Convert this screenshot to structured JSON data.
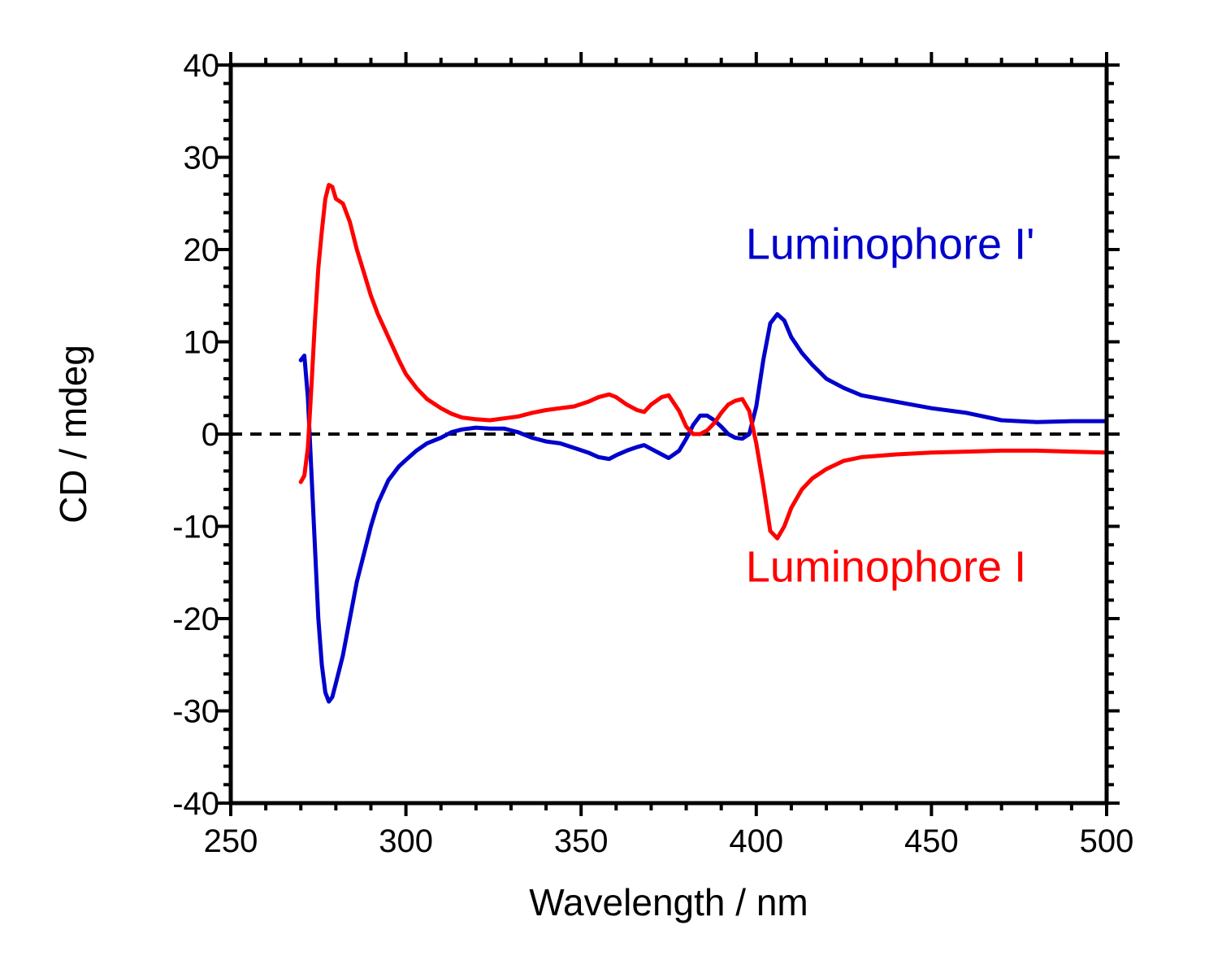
{
  "chart_data": {
    "type": "line",
    "title": "",
    "xlabel": "Wavelength / nm",
    "ylabel": "CD / mdeg",
    "xlim": [
      250,
      500
    ],
    "ylim": [
      -40,
      40
    ],
    "xticks": [
      250,
      300,
      350,
      400,
      450,
      500
    ],
    "xtick_labels": [
      "250",
      "300",
      "350",
      "400",
      "450",
      "500"
    ],
    "yticks": [
      -40,
      -30,
      -20,
      -10,
      0,
      10,
      20,
      30,
      40
    ],
    "ytick_labels": [
      "-40",
      "-30",
      "-20",
      "-10",
      "0",
      "10",
      "20",
      "30",
      "40"
    ],
    "x_minor_step": 10,
    "y_minor_step": 2,
    "grid": false,
    "zero_line": {
      "y": 0,
      "style": "dashed",
      "color": "#000000"
    },
    "series": [
      {
        "name": "Luminophore I'",
        "color": "#0000CC",
        "x": [
          270,
          271,
          272,
          273,
          274,
          275,
          276,
          277,
          278,
          279,
          280,
          282,
          284,
          286,
          288,
          290,
          292,
          295,
          298,
          300,
          303,
          306,
          310,
          313,
          316,
          320,
          324,
          328,
          332,
          336,
          340,
          344,
          348,
          352,
          355,
          358,
          360,
          363,
          366,
          368,
          370,
          373,
          375,
          378,
          380,
          382,
          384,
          386,
          388,
          390,
          392,
          394,
          396,
          398,
          400,
          402,
          404,
          406,
          408,
          410,
          413,
          416,
          420,
          425,
          430,
          440,
          450,
          460,
          470,
          480,
          490,
          500
        ],
        "values": [
          8,
          8.5,
          4,
          -4,
          -12,
          -20,
          -25,
          -28,
          -29,
          -28.5,
          -27,
          -24,
          -20,
          -16,
          -13,
          -10,
          -7.5,
          -5,
          -3.5,
          -2.8,
          -1.8,
          -1.0,
          -0.4,
          0.2,
          0.5,
          0.7,
          0.6,
          0.6,
          0.2,
          -0.4,
          -0.8,
          -1.0,
          -1.5,
          -2.0,
          -2.5,
          -2.7,
          -2.3,
          -1.8,
          -1.4,
          -1.2,
          -1.6,
          -2.2,
          -2.6,
          -1.8,
          -0.5,
          1.0,
          2.0,
          2.0,
          1.5,
          0.8,
          0,
          -0.4,
          -0.5,
          0,
          3.0,
          8.0,
          12.0,
          13.0,
          12.3,
          10.5,
          8.8,
          7.5,
          6.0,
          5.0,
          4.2,
          3.5,
          2.8,
          2.3,
          1.5,
          1.3,
          1.4,
          1.4
        ]
      },
      {
        "name": "Luminophore I",
        "color": "#FF0000",
        "x": [
          270,
          271,
          272,
          273,
          274,
          275,
          276,
          277,
          278,
          279,
          280,
          282,
          284,
          286,
          288,
          290,
          292,
          295,
          298,
          300,
          303,
          306,
          310,
          313,
          316,
          320,
          324,
          328,
          332,
          336,
          340,
          344,
          348,
          352,
          355,
          358,
          360,
          363,
          366,
          368,
          370,
          373,
          375,
          378,
          380,
          382,
          384,
          386,
          388,
          390,
          392,
          394,
          396,
          398,
          400,
          402,
          404,
          406,
          408,
          410,
          413,
          416,
          420,
          425,
          430,
          440,
          450,
          460,
          470,
          480,
          490,
          500
        ],
        "values": [
          -5.2,
          -4.5,
          -1.5,
          5,
          12,
          18,
          22,
          25.5,
          27,
          26.8,
          25.5,
          25,
          23,
          20,
          17.5,
          15,
          13,
          10.5,
          8,
          6.5,
          5.0,
          3.8,
          2.8,
          2.2,
          1.8,
          1.6,
          1.5,
          1.7,
          1.9,
          2.3,
          2.6,
          2.8,
          3.0,
          3.5,
          4.0,
          4.3,
          4.0,
          3.2,
          2.6,
          2.4,
          3.2,
          4.0,
          4.2,
          2.5,
          0.8,
          0,
          0,
          0.4,
          1.2,
          2.3,
          3.2,
          3.6,
          3.8,
          2.5,
          -1.0,
          -5.5,
          -10.5,
          -11.3,
          -10.0,
          -8.0,
          -6.0,
          -4.8,
          -3.8,
          -2.9,
          -2.5,
          -2.2,
          -2.0,
          -1.9,
          -1.8,
          -1.8,
          -1.9,
          -2.0
        ]
      }
    ],
    "annotations": [
      {
        "text": "Luminophore I'",
        "color": "#0000CC",
        "x": 397,
        "y": 19
      },
      {
        "text": "Luminophore I",
        "color": "#FF0000",
        "x": 397,
        "y": -16
      }
    ]
  }
}
